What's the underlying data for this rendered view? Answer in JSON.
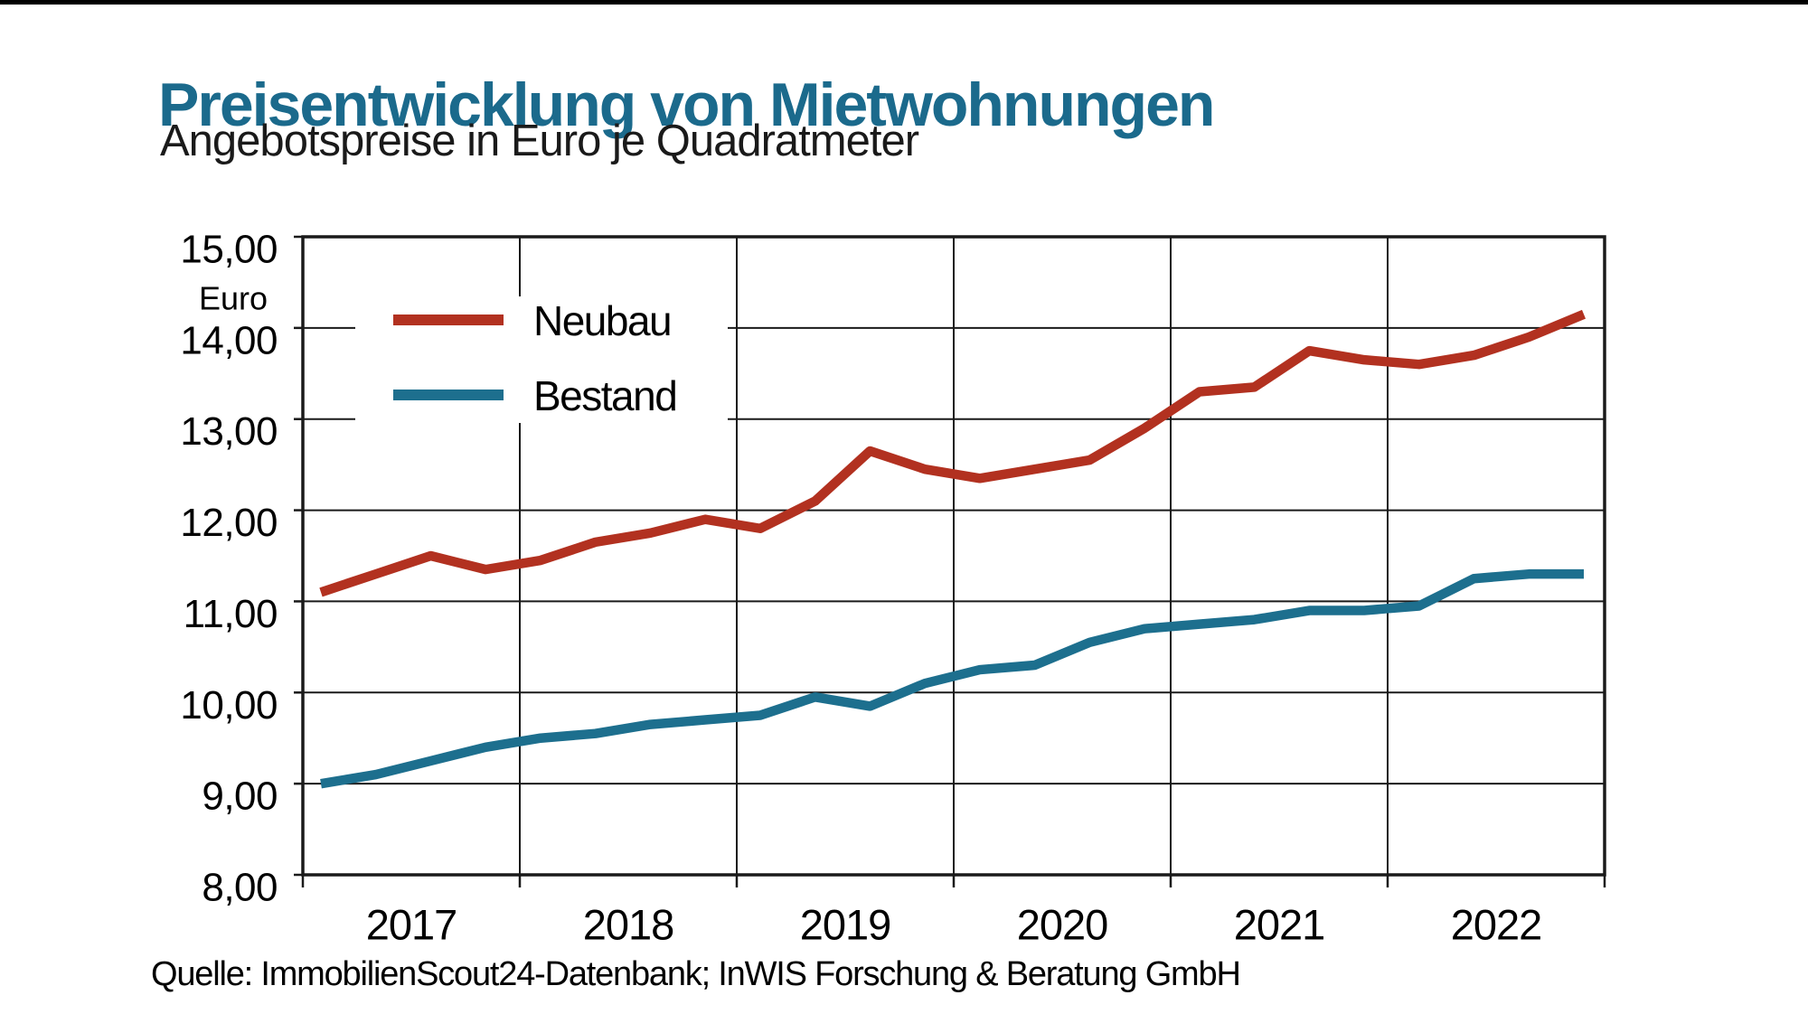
{
  "page": {
    "title": "Preisentwicklung von Mietwohnungen",
    "subtitle": "Angebotspreise in Euro je Quadratmeter",
    "source": "Quelle: ImmobilienScout24-Datenbank; InWIS Forschung & Beratung GmbH"
  },
  "colors": {
    "title": "#1b6a8c",
    "neubau": "#b23120",
    "bestand": "#1d6f8e",
    "grid": "#1a1a1a",
    "text": "#000000",
    "top_rule": "#000000",
    "background": "#ffffff"
  },
  "y_axis": {
    "unit_label": "Euro",
    "min": 8,
    "max": 15,
    "step": 1,
    "tick_labels": [
      "8,00",
      "9,00",
      "10,00",
      "11,00",
      "12,00",
      "13,00",
      "14,00",
      "15,00"
    ]
  },
  "x_axis": {
    "tick_labels": [
      "2017",
      "2018",
      "2019",
      "2020",
      "2021",
      "2022"
    ]
  },
  "legend": {
    "items": [
      {
        "label": "Neubau",
        "color": "#b23120"
      },
      {
        "label": "Bestand",
        "color": "#1d6f8e"
      }
    ]
  },
  "chart_data": {
    "type": "line",
    "title": "Preisentwicklung von Mietwohnungen",
    "subtitle": "Angebotspreise in Euro je Quadratmeter",
    "xlabel": "",
    "ylabel": "Euro",
    "ylim": [
      8,
      15
    ],
    "ytick_step": 1,
    "grid": true,
    "legend_position": "inside-top-left",
    "x_unit": "quarter",
    "categories": [
      "2017-Q1",
      "2017-Q2",
      "2017-Q3",
      "2017-Q4",
      "2018-Q1",
      "2018-Q2",
      "2018-Q3",
      "2018-Q4",
      "2019-Q1",
      "2019-Q2",
      "2019-Q3",
      "2019-Q4",
      "2020-Q1",
      "2020-Q2",
      "2020-Q3",
      "2020-Q4",
      "2021-Q1",
      "2021-Q2",
      "2021-Q3",
      "2021-Q4",
      "2022-Q1",
      "2022-Q2",
      "2022-Q3",
      "2022-Q4"
    ],
    "series": [
      {
        "name": "Neubau",
        "color": "#b23120",
        "values": [
          11.1,
          11.3,
          11.5,
          11.35,
          11.45,
          11.65,
          11.75,
          11.9,
          11.8,
          12.1,
          12.65,
          12.45,
          12.35,
          12.45,
          12.55,
          12.9,
          13.3,
          13.35,
          13.75,
          13.65,
          13.6,
          13.7,
          13.9,
          14.15
        ]
      },
      {
        "name": "Bestand",
        "color": "#1d6f8e",
        "values": [
          9.0,
          9.1,
          9.25,
          9.4,
          9.5,
          9.55,
          9.65,
          9.7,
          9.75,
          9.95,
          9.85,
          10.1,
          10.25,
          10.3,
          10.55,
          10.7,
          10.75,
          10.8,
          10.9,
          10.9,
          10.95,
          11.25,
          11.3,
          11.3
        ]
      }
    ]
  }
}
